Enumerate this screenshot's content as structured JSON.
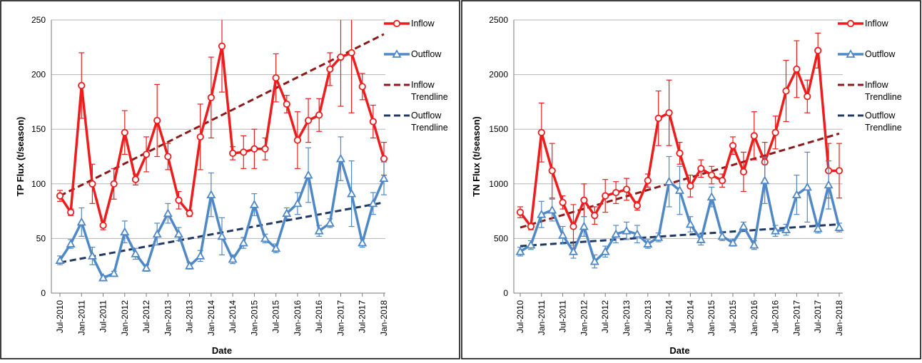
{
  "chart_data": [
    {
      "type": "line",
      "ylabel": "TP Flux (t/season)",
      "xlabel": "Date",
      "ylim": [
        0,
        250
      ],
      "yticks": [
        0,
        50,
        100,
        150,
        200,
        250
      ],
      "x_tick_labels": [
        "Jul-2010",
        "Jan-2011",
        "Jul-2011",
        "Jan-2012",
        "Jul-2012",
        "Jan-2013",
        "Jul-2013",
        "Jan-2014",
        "Jul-2014",
        "Jan-2015",
        "Jul-2015",
        "Jan-2016",
        "Jul-2016",
        "Jan-2017",
        "Jul-2017",
        "Jan-2018"
      ],
      "x_start_label": "Jul-2010",
      "points_per_tick": 2,
      "grid": true,
      "legend_position": "right",
      "series": [
        {
          "name": "Inflow",
          "kind": "data",
          "marker": "circle",
          "color": "#ee1c1c",
          "values": [
            89,
            74,
            190,
            100,
            62,
            100,
            147,
            104,
            127,
            158,
            125,
            85,
            73,
            143,
            179,
            226,
            128,
            129,
            132,
            132,
            197,
            173,
            140,
            158,
            163,
            205,
            216,
            220,
            189,
            157,
            123
          ],
          "errors": [
            5,
            3,
            30,
            18,
            4,
            14,
            20,
            5,
            16,
            33,
            12,
            8,
            3,
            30,
            37,
            42,
            6,
            15,
            18,
            10,
            22,
            8,
            26,
            20,
            15,
            15,
            45,
            55,
            12,
            15,
            15
          ]
        },
        {
          "name": "Outflow",
          "kind": "data",
          "marker": "triangle",
          "color": "#4f88c6",
          "values": [
            30,
            45,
            65,
            34,
            14,
            18,
            56,
            36,
            23,
            54,
            73,
            54,
            25,
            34,
            90,
            52,
            31,
            46,
            81,
            50,
            41,
            73,
            82,
            108,
            57,
            64,
            123,
            91,
            46,
            82,
            105
          ],
          "errors": [
            4,
            4,
            13,
            8,
            2,
            2,
            10,
            5,
            3,
            10,
            9,
            6,
            3,
            5,
            20,
            17,
            4,
            5,
            10,
            4,
            4,
            5,
            10,
            25,
            5,
            4,
            20,
            30,
            4,
            10,
            15
          ]
        },
        {
          "name": "Inflow Trendline",
          "kind": "trend",
          "color": "#8b1a1a",
          "start": 89,
          "end": 237
        },
        {
          "name": "Outflow Trendline",
          "kind": "trend",
          "color": "#1f3864",
          "start": 28,
          "end": 83
        }
      ]
    },
    {
      "type": "line",
      "ylabel": "TN Flux (t/season)",
      "xlabel": "Date",
      "ylim": [
        0,
        2500
      ],
      "yticks": [
        0,
        500,
        1000,
        1500,
        2000,
        2500
      ],
      "x_tick_labels": [
        "Jul-2010",
        "Jan-2011",
        "Jul-2011",
        "Jan-2012",
        "Jul-2012",
        "Jan-2013",
        "Jul-2013",
        "Jan-2014",
        "Jul-2014",
        "Jan-2015",
        "Jul-2015",
        "Jan-2016",
        "Jul-2016",
        "Jan-2017",
        "Jul-2017",
        "Jan-2018"
      ],
      "x_start_label": "Jul-2010",
      "points_per_tick": 2,
      "grid": true,
      "legend_position": "right",
      "series": [
        {
          "name": "Inflow",
          "kind": "data",
          "marker": "circle",
          "color": "#ee1c1c",
          "values": [
            740,
            610,
            1470,
            1120,
            830,
            610,
            850,
            710,
            890,
            920,
            950,
            800,
            1030,
            1600,
            1650,
            1280,
            980,
            1140,
            1080,
            1030,
            1350,
            1110,
            1440,
            1200,
            1470,
            1850,
            2050,
            1800,
            2220,
            1120,
            1120
          ],
          "errors": [
            50,
            30,
            270,
            250,
            60,
            200,
            150,
            80,
            150,
            100,
            100,
            40,
            60,
            250,
            300,
            100,
            100,
            80,
            80,
            60,
            80,
            180,
            220,
            180,
            150,
            280,
            260,
            150,
            160,
            250,
            250
          ]
        },
        {
          "name": "Outflow",
          "kind": "data",
          "marker": "triangle",
          "color": "#4f88c6",
          "values": [
            380,
            440,
            720,
            760,
            530,
            380,
            610,
            290,
            380,
            540,
            570,
            540,
            450,
            510,
            1020,
            940,
            630,
            490,
            880,
            520,
            460,
            610,
            440,
            1030,
            570,
            580,
            900,
            970,
            590,
            990,
            600
          ],
          "errors": [
            40,
            40,
            120,
            100,
            80,
            60,
            90,
            60,
            50,
            80,
            80,
            80,
            40,
            40,
            230,
            220,
            70,
            50,
            90,
            40,
            30,
            40,
            40,
            210,
            50,
            50,
            180,
            320,
            40,
            220,
            40
          ]
        },
        {
          "name": "Inflow Trendline",
          "kind": "trend",
          "color": "#8b1a1a",
          "start": 600,
          "end": 1460
        },
        {
          "name": "Outflow Trendline",
          "kind": "trend",
          "color": "#1f3864",
          "start": 430,
          "end": 630
        }
      ]
    }
  ]
}
